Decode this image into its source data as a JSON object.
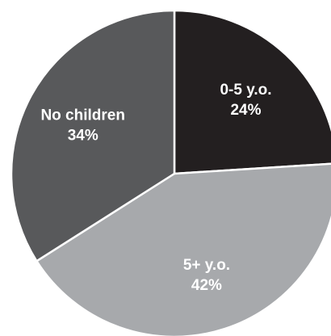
{
  "chart_data": {
    "type": "pie",
    "title": "",
    "start_angle_deg": 0,
    "direction": "clockwise",
    "slices": [
      {
        "label": "0-5 y.o.",
        "value": 24,
        "value_label": "24%",
        "color": "#231f20"
      },
      {
        "label": "5+ y.o.",
        "value": 42,
        "value_label": "42%",
        "color": "#a7a9ac"
      },
      {
        "label": "No children",
        "value": 34,
        "value_label": "34%",
        "color": "#58595b"
      }
    ],
    "legend": "none",
    "grid": false
  }
}
